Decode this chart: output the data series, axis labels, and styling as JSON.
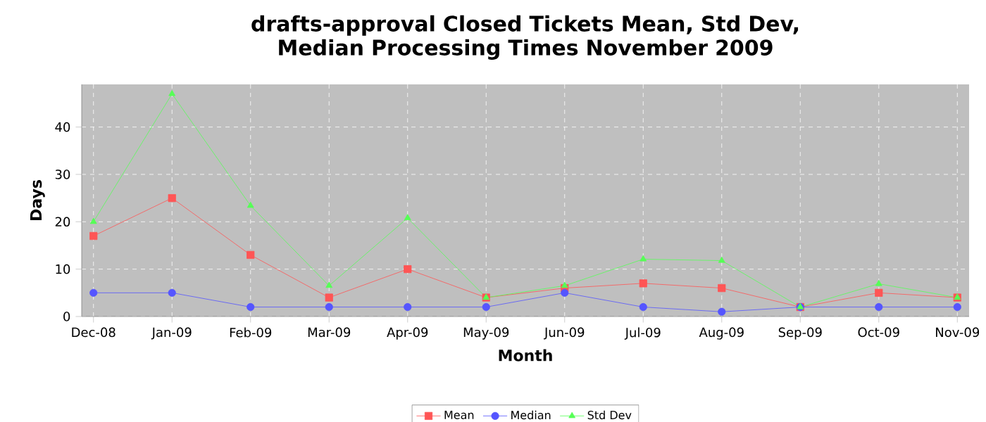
{
  "chart_data": {
    "type": "line",
    "title": "drafts-approval Closed Tickets Mean, Std Dev, Median Processing Times November 2009",
    "xlabel": "Month",
    "ylabel": "Days",
    "categories": [
      "Dec-08",
      "Jan-09",
      "Feb-09",
      "Mar-09",
      "Apr-09",
      "May-09",
      "Jun-09",
      "Jul-09",
      "Aug-09",
      "Sep-09",
      "Oct-09",
      "Nov-09"
    ],
    "series": [
      {
        "name": "Mean",
        "color": "#ff5555",
        "marker": "square",
        "values": [
          17,
          25,
          13,
          4,
          10,
          4,
          6,
          7,
          6,
          2,
          5,
          4
        ]
      },
      {
        "name": "Median",
        "color": "#5555ff",
        "marker": "circle",
        "values": [
          5,
          5,
          2,
          2,
          2,
          2,
          5,
          2,
          1,
          2,
          2,
          2
        ]
      },
      {
        "name": "Std Dev",
        "color": "#55ff55",
        "marker": "triangle",
        "values": [
          20,
          47,
          23.4,
          6.5,
          20.8,
          4,
          6.5,
          12.1,
          11.8,
          2,
          6.9,
          4
        ]
      }
    ],
    "ylim": [
      0,
      49
    ],
    "yticks": [
      0,
      10,
      20,
      30,
      40
    ],
    "grid": true,
    "legend": "bottom"
  }
}
